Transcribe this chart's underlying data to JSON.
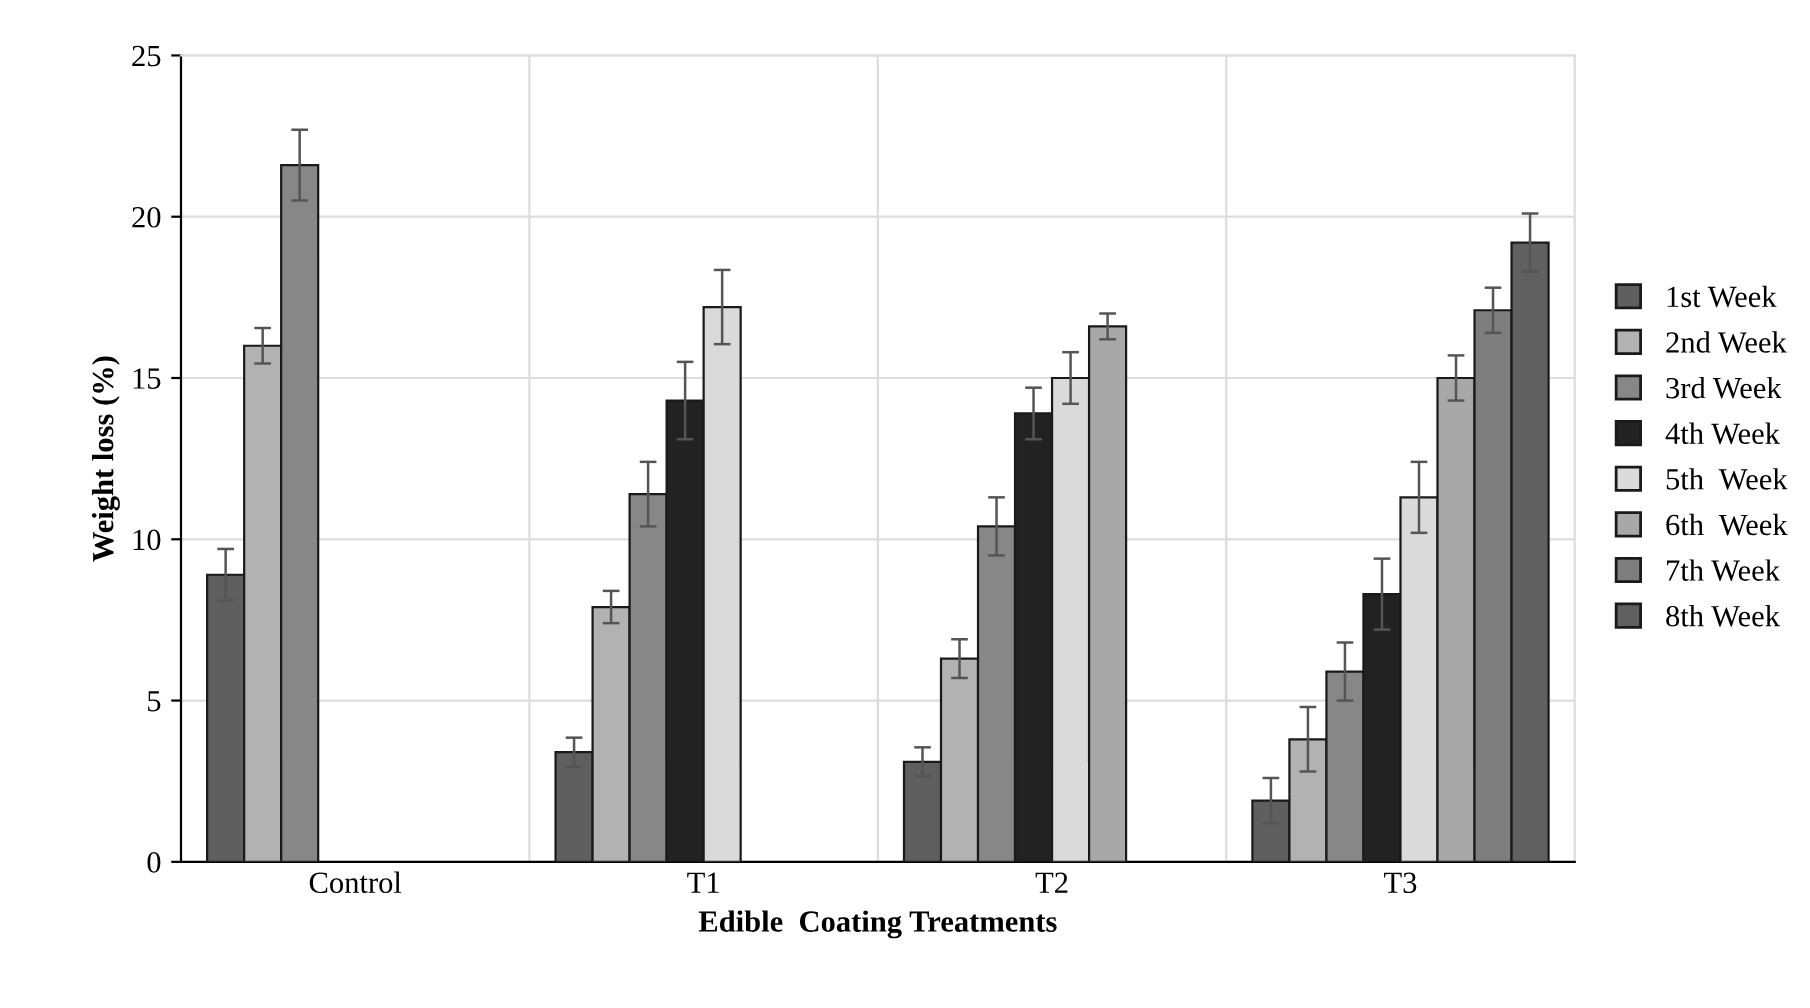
{
  "chart_data": {
    "type": "bar",
    "xlabel": "Edible  Coating Treatments",
    "ylabel": "Weight loss (%)",
    "categories": [
      "Control",
      "T1",
      "T2",
      "T3"
    ],
    "series": [
      {
        "name": "1st Week",
        "color": "#5f5f5f",
        "values": [
          8.9,
          3.4,
          3.1,
          1.9
        ],
        "errors": [
          0.8,
          0.45,
          0.45,
          0.7
        ]
      },
      {
        "name": "2nd Week",
        "color": "#b2b2b2",
        "values": [
          16.0,
          7.9,
          6.3,
          3.8
        ],
        "errors": [
          0.55,
          0.5,
          0.6,
          1.0
        ]
      },
      {
        "name": "3rd Week",
        "color": "#878787",
        "values": [
          21.6,
          11.4,
          10.4,
          5.9
        ],
        "errors": [
          1.1,
          1.0,
          0.9,
          0.9
        ]
      },
      {
        "name": "4th Week",
        "color": "#222222",
        "values": [
          null,
          14.3,
          13.9,
          8.3
        ],
        "errors": [
          null,
          1.2,
          0.8,
          1.1
        ]
      },
      {
        "name": "5th  Week",
        "color": "#dadada",
        "values": [
          null,
          17.2,
          15.0,
          11.3
        ],
        "errors": [
          null,
          1.15,
          0.8,
          1.1
        ]
      },
      {
        "name": "6th  Week",
        "color": "#a8a8a8",
        "values": [
          null,
          null,
          16.6,
          15.0
        ],
        "errors": [
          null,
          null,
          0.4,
          0.7
        ]
      },
      {
        "name": "7th Week",
        "color": "#7e7e7e",
        "values": [
          null,
          null,
          null,
          17.1
        ],
        "errors": [
          null,
          null,
          null,
          0.7
        ]
      },
      {
        "name": "8th Week",
        "color": "#606060",
        "values": [
          null,
          null,
          null,
          19.2
        ],
        "errors": [
          null,
          null,
          null,
          0.9
        ]
      }
    ],
    "ylim": [
      0,
      25
    ],
    "yticks": [
      0,
      5,
      10,
      15,
      20,
      25
    ],
    "grid": true,
    "legend": "right"
  }
}
